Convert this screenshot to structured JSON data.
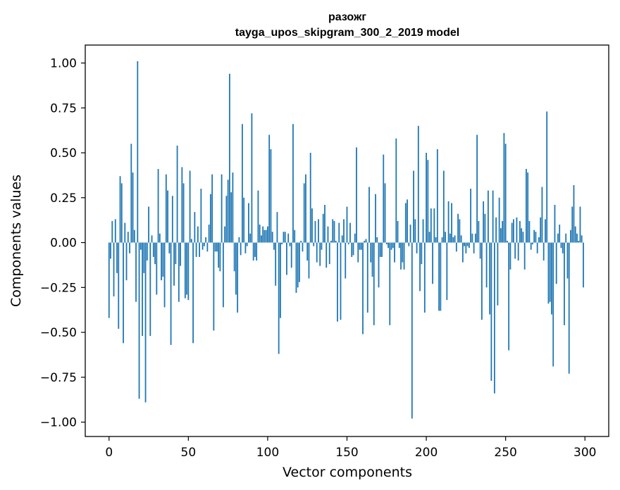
{
  "chart_data": {
    "type": "bar",
    "title": "разожг",
    "subtitle": "tayga_upos_skipgram_300_2_2019 model",
    "xlabel": "Vector components",
    "ylabel": "Components values",
    "xlim": [
      -15,
      315
    ],
    "ylim": [
      -1.08,
      1.1
    ],
    "xticks": [
      0,
      50,
      100,
      150,
      200,
      250,
      300
    ],
    "xtick_labels": [
      "0",
      "50",
      "100",
      "150",
      "200",
      "250",
      "300"
    ],
    "yticks": [
      1.0,
      0.75,
      0.5,
      0.25,
      0.0,
      -0.25,
      -0.5,
      -0.75,
      -1.0
    ],
    "ytick_labels": [
      "1.00",
      "0.75",
      "0.50",
      "0.25",
      "0.00",
      "−0.25",
      "−0.50",
      "−0.75",
      "−1.00"
    ],
    "grid": false,
    "bar_color": "#1f77b4",
    "values": [
      -0.42,
      -0.09,
      0.12,
      -0.3,
      0.13,
      -0.17,
      -0.48,
      0.37,
      0.33,
      -0.56,
      0.11,
      -0.21,
      0.06,
      -0.06,
      0.55,
      0.39,
      0.07,
      -0.33,
      1.01,
      -0.87,
      -0.04,
      -0.52,
      -0.17,
      -0.89,
      -0.1,
      0.2,
      -0.52,
      0.04,
      -0.08,
      -0.12,
      -0.29,
      0.41,
      0.05,
      -0.21,
      -0.19,
      -0.36,
      0.38,
      0.29,
      -0.06,
      -0.57,
      0.26,
      -0.24,
      -0.12,
      0.54,
      -0.33,
      -0.13,
      0.42,
      0.33,
      -0.31,
      -0.29,
      -0.32,
      0.4,
      0.02,
      -0.56,
      0.17,
      -0.08,
      0.09,
      -0.08,
      0.3,
      -0.04,
      -0.02,
      0.03,
      -0.05,
      0.1,
      0.27,
      0.38,
      -0.49,
      -0.05,
      -0.05,
      -0.14,
      -0.16,
      0.38,
      -0.36,
      0.09,
      0.26,
      0.35,
      0.94,
      0.28,
      0.39,
      -0.16,
      -0.29,
      -0.39,
      0.03,
      -0.07,
      0.66,
      0.25,
      -0.06,
      -0.02,
      0.22,
      0.05,
      0.72,
      -0.1,
      -0.08,
      -0.1,
      0.29,
      0.1,
      0.04,
      0.09,
      0.07,
      0.07,
      0.09,
      0.6,
      0.52,
      0.06,
      -0.04,
      -0.24,
      0.17,
      -0.62,
      -0.42,
      -0.01,
      0.06,
      0.06,
      -0.18,
      0.05,
      -0.02,
      -0.14,
      0.66,
      0.07,
      -0.28,
      -0.25,
      -0.22,
      0.01,
      -0.05,
      0.33,
      0.38,
      -0.1,
      -0.2,
      0.5,
      0.19,
      -0.02,
      0.12,
      -0.11,
      0.13,
      -0.13,
      -0.04,
      0.16,
      0.21,
      -0.14,
      0.09,
      -0.12,
      0.01,
      0.13,
      0.12,
      0.01,
      -0.44,
      0.11,
      -0.43,
      0.04,
      0.13,
      -0.2,
      0.2,
      -0.01,
      0.11,
      -0.08,
      -0.07,
      0.05,
      0.53,
      -0.11,
      -0.04,
      -0.04,
      -0.51,
      0.01,
      0.02,
      -0.39,
      0.31,
      -0.11,
      -0.19,
      -0.46,
      0.27,
      0.03,
      -0.25,
      -0.08,
      -0.08,
      0.49,
      0.33,
      -0.01,
      -0.03,
      -0.46,
      -0.04,
      -0.03,
      -0.11,
      0.58,
      0.12,
      -0.03,
      -0.15,
      -0.11,
      -0.15,
      0.22,
      0.24,
      -0.02,
      0.1,
      -0.98,
      0.4,
      0.13,
      -0.06,
      0.65,
      -0.27,
      -0.12,
      0.13,
      -0.39,
      0.5,
      0.46,
      0.06,
      0.19,
      -0.23,
      0.19,
      0.03,
      0.52,
      -0.38,
      -0.38,
      0.03,
      0.4,
      0.06,
      -0.32,
      0.23,
      0.05,
      0.22,
      0.03,
      0.04,
      -0.05,
      0.16,
      0.13,
      0.04,
      -0.11,
      -0.02,
      -0.06,
      -0.02,
      -0.03,
      0.3,
      0.05,
      -0.06,
      0.05,
      0.6,
      0.12,
      -0.09,
      -0.43,
      0.23,
      0.16,
      -0.25,
      0.29,
      -0.4,
      -0.77,
      0.29,
      -0.84,
      0.14,
      -0.35,
      0.25,
      0.08,
      0.12,
      0.61,
      0.55,
      0.01,
      -0.6,
      -0.15,
      0.11,
      0.13,
      -0.09,
      0.14,
      -0.1,
      0.12,
      0.08,
      0.06,
      -0.15,
      0.41,
      0.39,
      0.12,
      -0.04,
      -0.01,
      0.07,
      0.06,
      -0.06,
      0.03,
      0.14,
      0.31,
      -0.1,
      0.13,
      0.73,
      -0.34,
      -0.33,
      -0.4,
      -0.69,
      0.21,
      -0.23,
      0.05,
      0.1,
      -0.03,
      -0.06,
      -0.46,
      0.05,
      -0.2,
      -0.73,
      0.07,
      0.2,
      0.32,
      0.09,
      0.05,
      0.01,
      0.2,
      0.04,
      -0.25
    ]
  }
}
